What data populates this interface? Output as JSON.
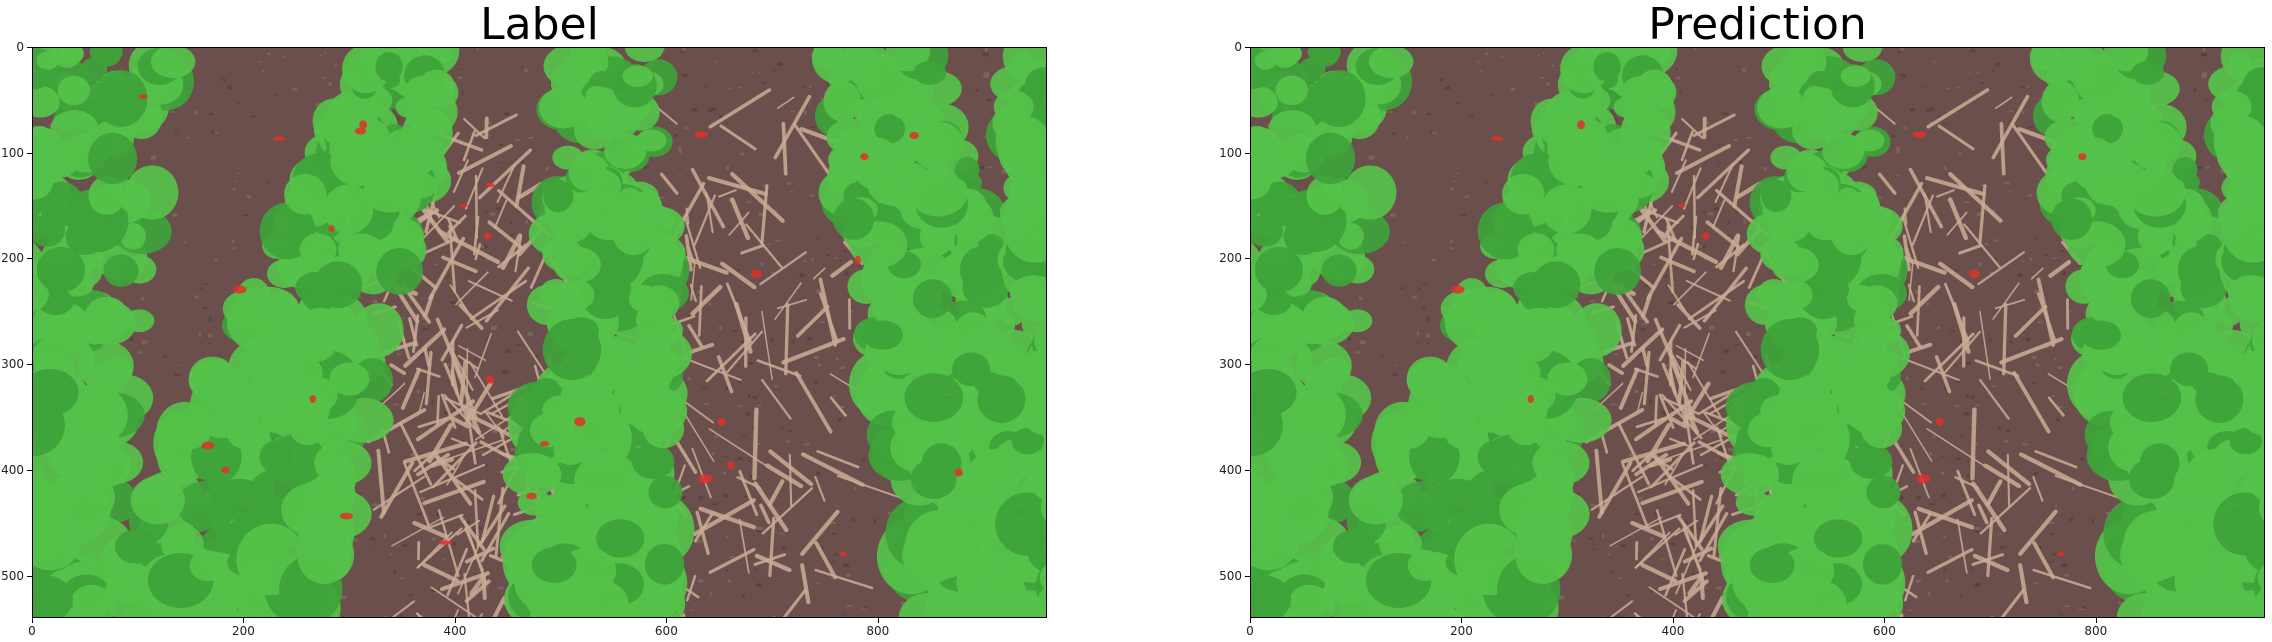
{
  "panels": [
    {
      "title": "Label",
      "kind": "label"
    },
    {
      "title": "Prediction",
      "kind": "prediction"
    }
  ],
  "axes": {
    "x_ticks": [
      "0",
      "200",
      "400",
      "600",
      "800"
    ],
    "x_values": [
      0,
      200,
      400,
      600,
      800
    ],
    "x_max": 960,
    "y_ticks": [
      "0",
      "100",
      "200",
      "300",
      "400",
      "500"
    ],
    "y_values": [
      0,
      100,
      200,
      300,
      400,
      500
    ],
    "y_max": 540
  },
  "colors": {
    "soil": "#6b4f4c",
    "soil_dark": "#4e3a39",
    "residue": "#c9ad95",
    "crop_overlay": "#55c24a",
    "crop_dark": "#3ea33a",
    "weed_overlay": "#e0302a"
  }
}
